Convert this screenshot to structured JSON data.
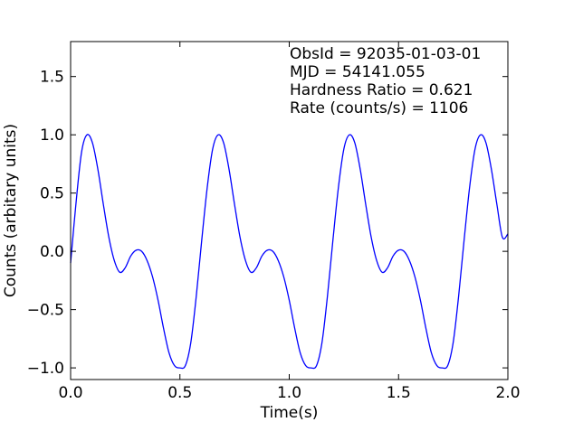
{
  "chart_data": {
    "type": "line",
    "title": "",
    "xlabel": "Time(s)",
    "ylabel": "Counts (arbitary units)",
    "xlim": [
      0.0,
      2.0
    ],
    "ylim": [
      -1.1,
      1.8
    ],
    "grid": false,
    "x_ticks": [
      0.0,
      0.5,
      1.0,
      1.5,
      2.0
    ],
    "x_tick_labels": [
      "0.0",
      "0.5",
      "1.0",
      "1.5",
      "2.0"
    ],
    "y_ticks": [
      -1.0,
      -0.5,
      0.0,
      0.5,
      1.0,
      1.5
    ],
    "y_tick_labels": [
      "−1.0",
      "−0.5",
      "0.0",
      "0.5",
      "1.0",
      "1.5"
    ],
    "annotations": [
      "ObsId = 92035-01-03-01",
      "MJD = 54141.055",
      "Hardness Ratio = 0.621",
      "Rate (counts/s) = 1106"
    ],
    "series": [
      {
        "color": "#0000ff",
        "x": [
          0.0,
          0.025,
          0.05,
          0.075,
          0.1,
          0.125,
          0.15,
          0.175,
          0.2,
          0.225,
          0.25,
          0.275,
          0.3,
          0.325,
          0.35,
          0.375,
          0.4,
          0.425,
          0.45,
          0.475,
          0.5,
          0.525,
          0.55,
          0.575,
          0.6,
          0.625,
          0.65,
          0.675,
          0.7,
          0.725,
          0.75,
          0.775,
          0.8,
          0.825,
          0.85,
          0.875,
          0.9,
          0.925,
          0.95,
          0.975,
          1.0,
          1.025,
          1.05,
          1.075,
          1.1,
          1.125,
          1.15,
          1.175,
          1.2,
          1.225,
          1.25,
          1.275,
          1.3,
          1.325,
          1.35,
          1.375,
          1.4,
          1.425,
          1.45,
          1.475,
          1.5,
          1.525,
          1.55,
          1.575,
          1.6,
          1.625,
          1.65,
          1.675,
          1.7,
          1.725,
          1.75,
          1.775,
          1.8,
          1.825,
          1.85,
          1.875,
          1.9,
          1.925,
          1.95,
          1.975,
          2.0
        ],
        "y": [
          -0.1,
          0.42,
          0.85,
          1.0,
          0.93,
          0.7,
          0.4,
          0.12,
          -0.08,
          -0.18,
          -0.14,
          -0.04,
          0.01,
          0.0,
          -0.08,
          -0.22,
          -0.42,
          -0.66,
          -0.87,
          -0.98,
          -1.0,
          -0.98,
          -0.78,
          -0.38,
          0.1,
          0.55,
          0.88,
          1.0,
          0.93,
          0.7,
          0.4,
          0.12,
          -0.08,
          -0.18,
          -0.14,
          -0.04,
          0.01,
          0.0,
          -0.08,
          -0.22,
          -0.42,
          -0.66,
          -0.87,
          -0.98,
          -1.0,
          -0.98,
          -0.78,
          -0.38,
          0.1,
          0.55,
          0.88,
          1.0,
          0.93,
          0.7,
          0.4,
          0.12,
          -0.08,
          -0.18,
          -0.14,
          -0.04,
          0.01,
          0.0,
          -0.08,
          -0.22,
          -0.42,
          -0.66,
          -0.87,
          -0.98,
          -1.0,
          -0.98,
          -0.78,
          -0.38,
          0.1,
          0.55,
          0.88,
          1.0,
          0.93,
          0.7,
          0.4,
          0.12,
          0.15
        ]
      }
    ]
  }
}
